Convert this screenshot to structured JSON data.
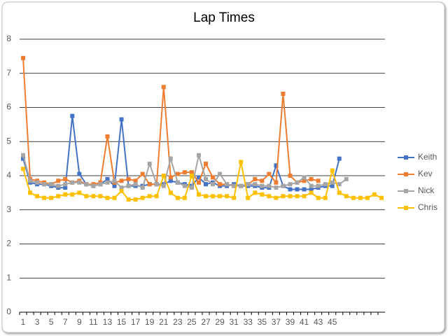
{
  "chart_data": {
    "type": "line",
    "title": "Lap Times",
    "categories": [
      1,
      null,
      3,
      null,
      5,
      null,
      7,
      null,
      9,
      null,
      11,
      null,
      13,
      null,
      15,
      null,
      17,
      null,
      19,
      null,
      21,
      null,
      23,
      null,
      25,
      null,
      27,
      null,
      29,
      null,
      31,
      null,
      33,
      null,
      35,
      null,
      37,
      null,
      39,
      null,
      41,
      null,
      43,
      null,
      45,
      null,
      null,
      null,
      null,
      null,
      null,
      null
    ],
    "ylim": [
      0,
      8
    ],
    "yticks": [
      0,
      1,
      2,
      3,
      4,
      5,
      6,
      7,
      8
    ],
    "grid": true,
    "legend": "right",
    "series": [
      {
        "name": "Keith",
        "color": "#4472c4",
        "values": [
          4.5,
          3.8,
          3.75,
          3.75,
          3.7,
          3.65,
          3.65,
          5.75,
          4.05,
          3.75,
          3.7,
          3.75,
          3.9,
          3.7,
          5.65,
          3.7,
          3.7,
          3.7,
          3.75,
          3.75,
          3.75,
          3.85,
          3.8,
          3.75,
          3.7,
          3.95,
          3.75,
          3.8,
          3.7,
          3.7,
          3.75,
          3.7,
          3.7,
          3.7,
          3.65,
          3.65,
          4.3,
          3.7,
          3.6,
          3.6,
          3.6,
          3.6,
          3.65,
          3.7,
          3.7,
          4.5,
          null,
          null,
          null,
          null,
          null,
          null
        ]
      },
      {
        "name": "Kev",
        "color": "#ed7d31",
        "values": [
          7.45,
          3.9,
          3.85,
          3.8,
          3.75,
          3.85,
          3.9,
          3.8,
          3.85,
          3.75,
          3.75,
          3.8,
          5.15,
          3.8,
          3.85,
          3.9,
          3.85,
          4.05,
          3.75,
          3.75,
          6.6,
          3.95,
          4.05,
          4.1,
          4.1,
          3.8,
          4.35,
          3.95,
          3.75,
          3.75,
          3.7,
          3.7,
          3.75,
          3.9,
          3.85,
          4.05,
          3.8,
          6.4,
          4.0,
          3.8,
          3.85,
          3.9,
          3.85,
          null,
          null,
          null,
          null,
          null,
          null,
          null,
          null,
          null
        ]
      },
      {
        "name": "Nick",
        "color": "#a5a5a5",
        "values": [
          4.6,
          3.85,
          3.8,
          3.75,
          3.75,
          3.7,
          3.75,
          3.8,
          3.8,
          3.75,
          3.7,
          3.75,
          3.8,
          3.85,
          3.65,
          3.7,
          3.75,
          3.65,
          4.35,
          3.75,
          3.7,
          4.5,
          3.8,
          3.7,
          3.65,
          4.6,
          3.9,
          3.75,
          4.05,
          3.75,
          3.7,
          3.7,
          3.75,
          3.75,
          3.7,
          3.7,
          3.65,
          3.7,
          3.75,
          3.8,
          3.95,
          3.7,
          3.7,
          3.75,
          3.8,
          3.75,
          3.9,
          null,
          null,
          null,
          null,
          null
        ]
      },
      {
        "name": "Chris",
        "color": "#ffc000",
        "values": [
          4.2,
          3.5,
          3.4,
          3.35,
          3.35,
          3.4,
          3.45,
          3.45,
          3.5,
          3.4,
          3.4,
          3.4,
          3.35,
          3.35,
          3.55,
          3.3,
          3.3,
          3.35,
          3.4,
          3.4,
          4.0,
          3.5,
          3.35,
          3.35,
          4.0,
          3.45,
          3.4,
          3.4,
          3.4,
          3.4,
          3.35,
          4.4,
          3.35,
          3.5,
          3.45,
          3.4,
          3.35,
          3.4,
          3.4,
          3.4,
          3.4,
          3.5,
          3.35,
          3.35,
          4.15,
          3.5,
          3.4,
          3.35,
          3.35,
          3.35,
          3.45,
          3.35
        ]
      }
    ]
  }
}
